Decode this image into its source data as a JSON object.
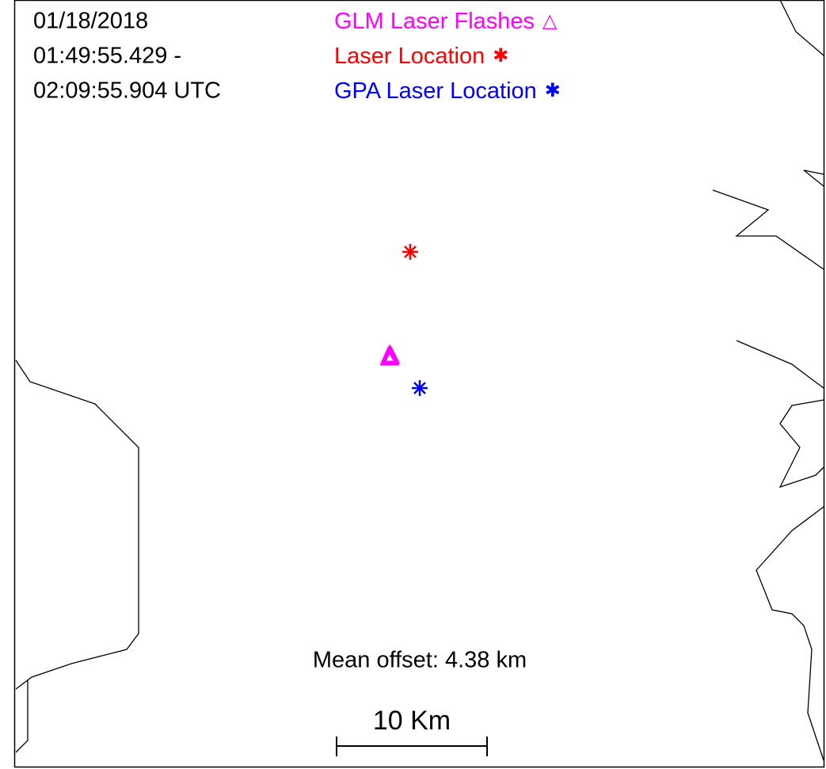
{
  "header": {
    "date": "01/18/2018",
    "time_start": "01:49:55.429 -",
    "time_end": "02:09:55.904 UTC"
  },
  "legend": [
    {
      "label": "GLM Laser Flashes",
      "symbol": "△",
      "color": "#ff00ff"
    },
    {
      "label": "Laser Location",
      "symbol": "✱",
      "color": "#ff0000"
    },
    {
      "label": "GPA Laser Location",
      "symbol": "✱",
      "color": "#0000ff"
    }
  ],
  "annotation": "Mean offset: 4.38 km",
  "scale_bar": "10 Km"
}
